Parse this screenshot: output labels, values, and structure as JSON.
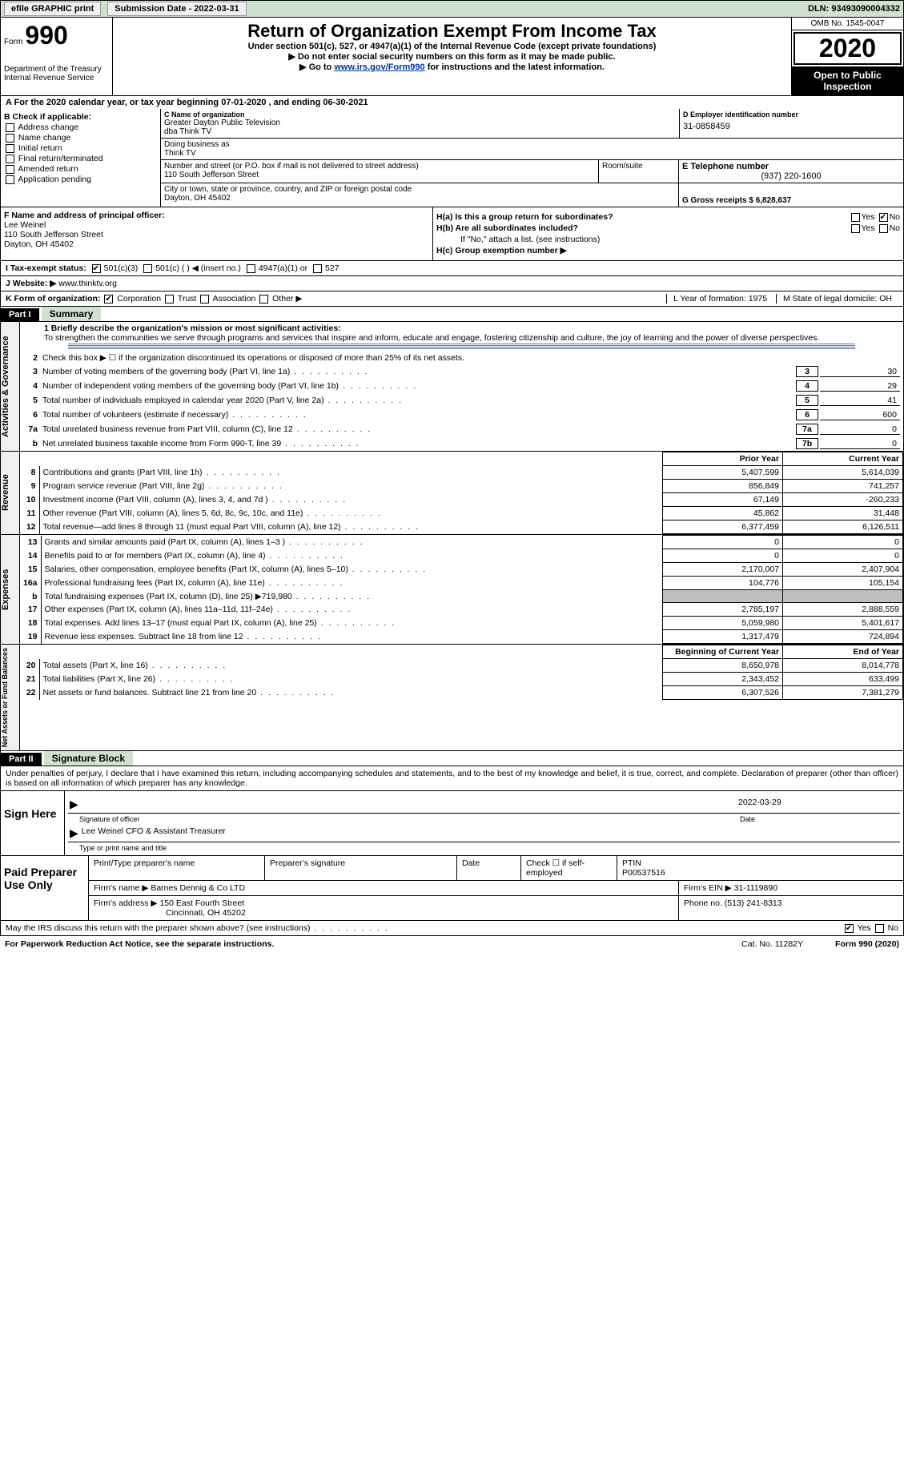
{
  "topbar": {
    "efile": "efile GRAPHIC print",
    "submission_label": "Submission Date - 2022-03-31",
    "dln_label": "DLN: 93493090004332"
  },
  "header": {
    "form_word": "Form",
    "form_num": "990",
    "dept": "Department of the Treasury",
    "irs": "Internal Revenue Service",
    "title": "Return of Organization Exempt From Income Tax",
    "subtitle": "Under section 501(c), 527, or 4947(a)(1) of the Internal Revenue Code (except private foundations)",
    "line1": "▶ Do not enter social security numbers on this form as it may be made public.",
    "line2_pre": "▶ Go to ",
    "line2_link": "www.irs.gov/Form990",
    "line2_post": " for instructions and the latest information.",
    "omb": "OMB No. 1545-0047",
    "year": "2020",
    "inspection": "Open to Public Inspection"
  },
  "period": {
    "text": "A For the 2020 calendar year, or tax year beginning 07-01-2020    , and ending 06-30-2021"
  },
  "box_b": {
    "label": "B Check if applicable:",
    "opts": [
      "Address change",
      "Name change",
      "Initial return",
      "Final return/terminated",
      "Amended return",
      "Application pending"
    ]
  },
  "box_c": {
    "label": "C Name of organization",
    "name": "Greater Dayton Public Television",
    "dba_line": "dba Think TV",
    "dba_label": "Doing business as",
    "dba": "Think TV",
    "addr_label": "Number and street (or P.O. box if mail is not delivered to street address)",
    "addr": "110 South Jefferson Street",
    "suite_label": "Room/suite",
    "city_label": "City or town, state or province, country, and ZIP or foreign postal code",
    "city": "Dayton, OH  45402"
  },
  "box_d": {
    "label": "D Employer identification number",
    "ein": "31-0858459"
  },
  "box_e": {
    "label": "E Telephone number",
    "phone": "(937) 220-1600"
  },
  "box_g": {
    "label": "G Gross receipts $ 6,828,637"
  },
  "box_f": {
    "label": "F Name and address of principal officer:",
    "name": "Lee Weinel",
    "addr": "110 South Jefferson Street",
    "city": "Dayton, OH  45402"
  },
  "box_h": {
    "ha_label": "H(a)  Is this a group return for subordinates?",
    "hb_label": "H(b)  Are all subordinates included?",
    "hb_note": "If \"No,\" attach a list. (see instructions)",
    "hc_label": "H(c)  Group exemption number ▶",
    "yes": "Yes",
    "no": "No"
  },
  "row_i": {
    "label": "I    Tax-exempt status:",
    "opts": [
      "501(c)(3)",
      "501(c) (  ) ◀ (insert no.)",
      "4947(a)(1) or",
      "527"
    ]
  },
  "row_j": {
    "label": "J    Website: ▶",
    "url": "www.thinktv.org"
  },
  "row_k": {
    "label": "K Form of organization:",
    "opts": [
      "Corporation",
      "Trust",
      "Association",
      "Other ▶"
    ],
    "l": "L Year of formation: 1975",
    "m": "M State of legal domicile: OH"
  },
  "part1": {
    "hdr": "Part I",
    "title": "Summary",
    "l1_label": "1  Briefly describe the organization's mission or most significant activities:",
    "l1_text": "To strengthen the communities we serve through programs and services that inspire and inform, educate and engage, fostering citizenship and culture, the joy of learning and the power of diverse perspectives.",
    "l2": "Check this box ▶ ☐  if the organization discontinued its operations or disposed of more than 25% of its net assets.",
    "lines": [
      {
        "n": "3",
        "t": "Number of voting members of the governing body (Part VI, line 1a)",
        "b": "3",
        "v": "30"
      },
      {
        "n": "4",
        "t": "Number of independent voting members of the governing body (Part VI, line 1b)",
        "b": "4",
        "v": "29"
      },
      {
        "n": "5",
        "t": "Total number of individuals employed in calendar year 2020 (Part V, line 2a)",
        "b": "5",
        "v": "41"
      },
      {
        "n": "6",
        "t": "Total number of volunteers (estimate if necessary)",
        "b": "6",
        "v": "600"
      },
      {
        "n": "7a",
        "t": "Total unrelated business revenue from Part VIII, column (C), line 12",
        "b": "7a",
        "v": "0"
      },
      {
        "n": "b",
        "t": "Net unrelated business taxable income from Form 990-T, line 39",
        "b": "7b",
        "v": "0"
      }
    ],
    "vtab1": "Activities & Governance"
  },
  "revenue": {
    "vtab": "Revenue",
    "prior_hdr": "Prior Year",
    "curr_hdr": "Current Year",
    "rows": [
      {
        "n": "8",
        "t": "Contributions and grants (Part VIII, line 1h)",
        "p": "5,407,599",
        "c": "5,614,039"
      },
      {
        "n": "9",
        "t": "Program service revenue (Part VIII, line 2g)",
        "p": "856,849",
        "c": "741,257"
      },
      {
        "n": "10",
        "t": "Investment income (Part VIII, column (A), lines 3, 4, and 7d )",
        "p": "67,149",
        "c": "-260,233"
      },
      {
        "n": "11",
        "t": "Other revenue (Part VIII, column (A), lines 5, 6d, 8c, 9c, 10c, and 11e)",
        "p": "45,862",
        "c": "31,448"
      },
      {
        "n": "12",
        "t": "Total revenue—add lines 8 through 11 (must equal Part VIII, column (A), line 12)",
        "p": "6,377,459",
        "c": "6,126,511"
      }
    ]
  },
  "expenses": {
    "vtab": "Expenses",
    "rows": [
      {
        "n": "13",
        "t": "Grants and similar amounts paid (Part IX, column (A), lines 1–3 )",
        "p": "0",
        "c": "0"
      },
      {
        "n": "14",
        "t": "Benefits paid to or for members (Part IX, column (A), line 4)",
        "p": "0",
        "c": "0"
      },
      {
        "n": "15",
        "t": "Salaries, other compensation, employee benefits (Part IX, column (A), lines 5–10)",
        "p": "2,170,007",
        "c": "2,407,904"
      },
      {
        "n": "16a",
        "t": "Professional fundraising fees (Part IX, column (A), line 11e)",
        "p": "104,776",
        "c": "105,154"
      },
      {
        "n": "b",
        "t": "Total fundraising expenses (Part IX, column (D), line 25) ▶719,980",
        "p": "",
        "c": "",
        "shaded": true
      },
      {
        "n": "17",
        "t": "Other expenses (Part IX, column (A), lines 11a–11d, 11f–24e)",
        "p": "2,785,197",
        "c": "2,888,559"
      },
      {
        "n": "18",
        "t": "Total expenses. Add lines 13–17 (must equal Part IX, column (A), line 25)",
        "p": "5,059,980",
        "c": "5,401,617"
      },
      {
        "n": "19",
        "t": "Revenue less expenses. Subtract line 18 from line 12",
        "p": "1,317,479",
        "c": "724,894"
      }
    ]
  },
  "netassets": {
    "vtab": "Net Assets or Fund Balances",
    "begin_hdr": "Beginning of Current Year",
    "end_hdr": "End of Year",
    "rows": [
      {
        "n": "20",
        "t": "Total assets (Part X, line 16)",
        "p": "8,650,978",
        "c": "8,014,778"
      },
      {
        "n": "21",
        "t": "Total liabilities (Part X, line 26)",
        "p": "2,343,452",
        "c": "633,499"
      },
      {
        "n": "22",
        "t": "Net assets or fund balances. Subtract line 21 from line 20",
        "p": "6,307,526",
        "c": "7,381,279"
      }
    ]
  },
  "part2": {
    "hdr": "Part II",
    "title": "Signature Block",
    "penalty": "Under penalties of perjury, I declare that I have examined this return, including accompanying schedules and statements, and to the best of my knowledge and belief, it is true, correct, and complete. Declaration of preparer (other than officer) is based on all information of which preparer has any knowledge."
  },
  "sign": {
    "label": "Sign Here",
    "sig_of_officer": "Signature of officer",
    "date": "Date",
    "date_val": "2022-03-29",
    "name": "Lee Weinel CFO & Assistant Treasurer",
    "name_label": "Type or print name and title"
  },
  "prep": {
    "label": "Paid Preparer Use Only",
    "r1": {
      "c1": "Print/Type preparer's name",
      "c2": "Preparer's signature",
      "c3": "Date",
      "c4": "Check ☐ if self-employed",
      "c5": "PTIN",
      "c5v": "P00537516"
    },
    "r2": {
      "c1": "Firm's name    ▶",
      "c1v": "Barnes Dennig & Co LTD",
      "c2": "Firm's EIN ▶ 31-1119890"
    },
    "r3": {
      "c1": "Firm's address ▶",
      "c1v": "150 East Fourth Street",
      "c1v2": "Cincinnati, OH  45202",
      "c2": "Phone no. (513) 241-8313"
    }
  },
  "discuss": {
    "text": "May the IRS discuss this return with the preparer shown above? (see instructions)",
    "yes": "Yes",
    "no": "No"
  },
  "footer": {
    "pra": "For Paperwork Reduction Act Notice, see the separate instructions.",
    "cat": "Cat. No. 11282Y",
    "form": "Form 990 (2020)"
  }
}
